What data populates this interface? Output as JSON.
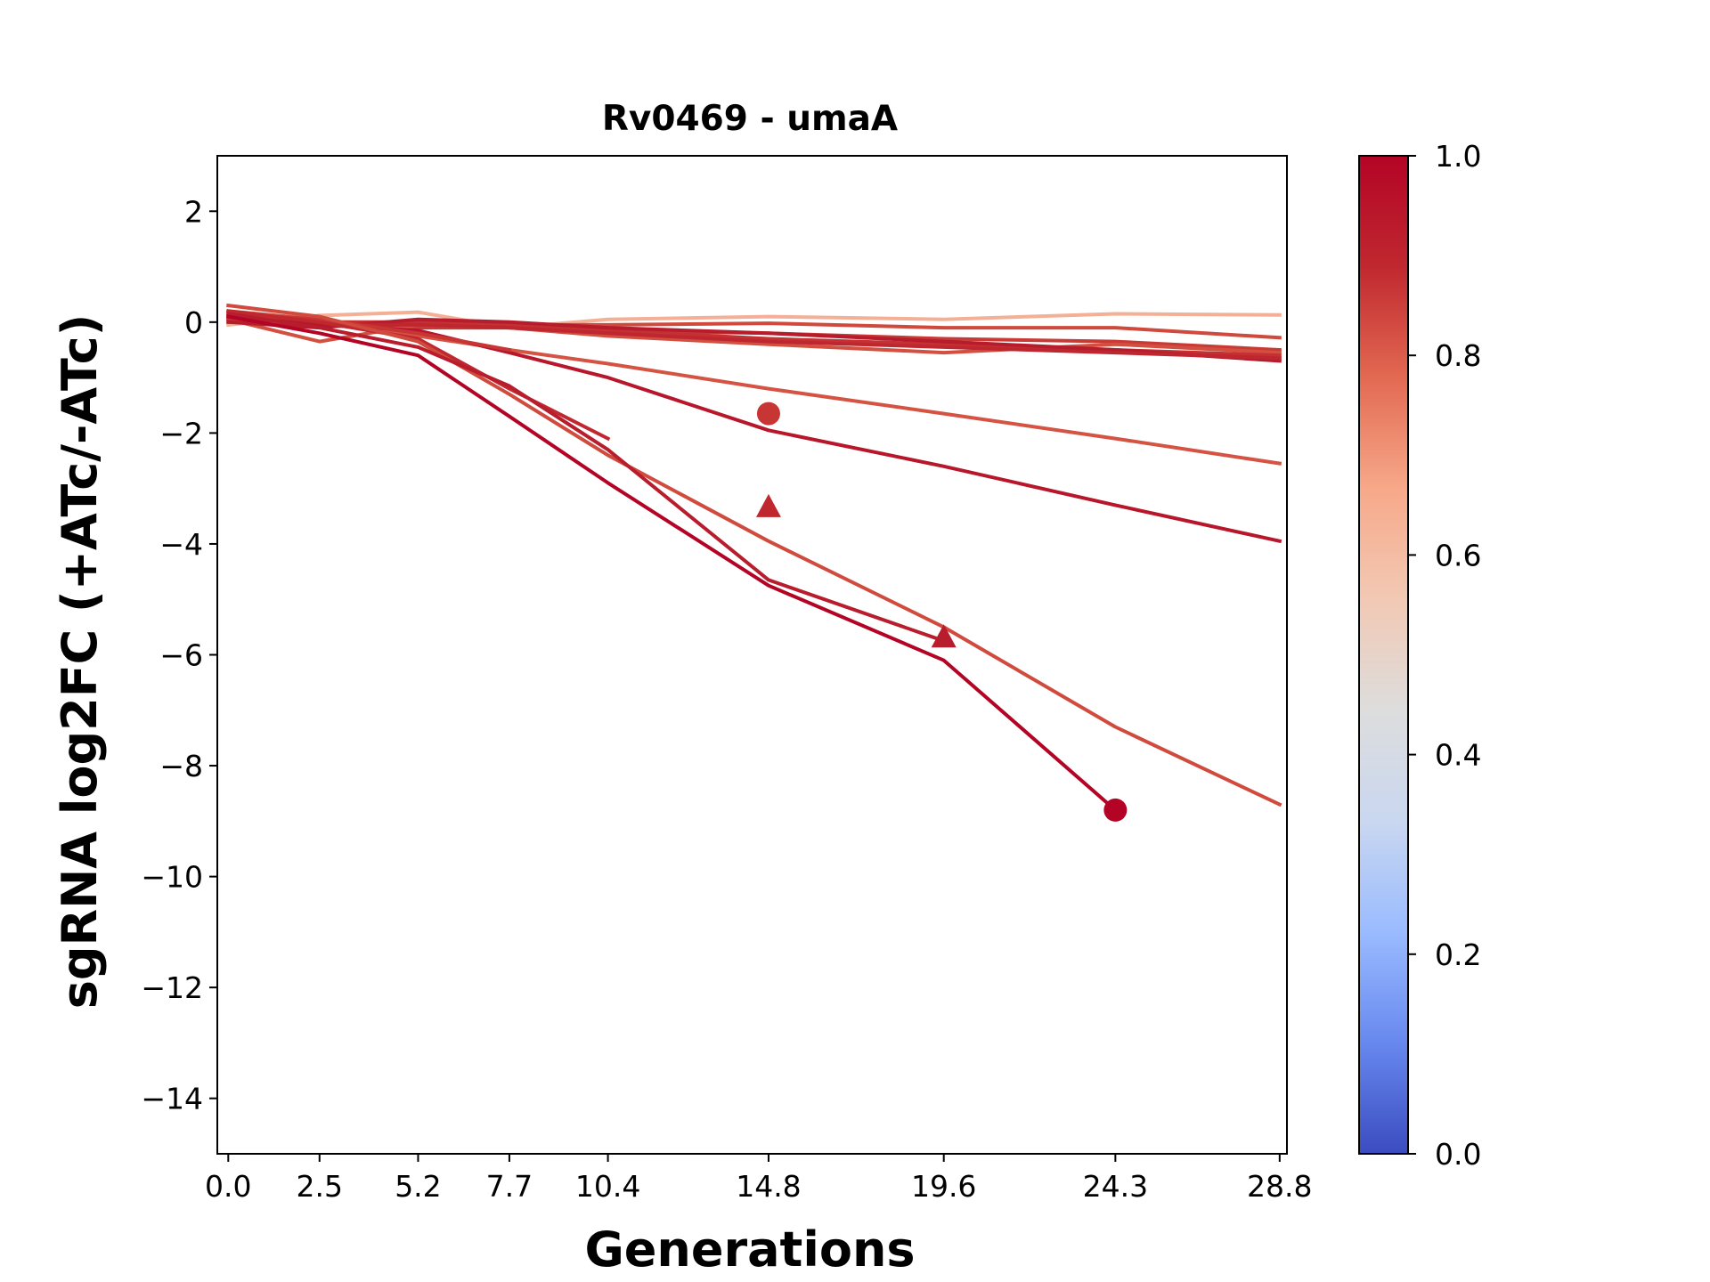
{
  "chart_data": {
    "type": "line",
    "title": "Rv0469 - umaA",
    "xlabel": "Generations",
    "ylabel": "sgRNA log2FC (+ATc/-ATc)",
    "xlim": [
      -0.3,
      29.0
    ],
    "ylim": [
      -15,
      3
    ],
    "x_ticks": [
      0.0,
      2.5,
      5.2,
      7.7,
      10.4,
      14.8,
      19.6,
      24.3,
      28.8
    ],
    "x_tick_labels": [
      "0.0",
      "2.5",
      "5.2",
      "7.7",
      "10.4",
      "14.8",
      "19.6",
      "24.3",
      "28.8"
    ],
    "y_ticks": [
      2,
      0,
      -2,
      -4,
      -6,
      -8,
      -10,
      -12,
      -14
    ],
    "y_tick_labels": [
      "2",
      "0",
      "−2",
      "−4",
      "−6",
      "−8",
      "−10",
      "−12",
      "−14"
    ],
    "grid": false,
    "colorbar": {
      "range": [
        0.0,
        1.0
      ],
      "ticks": [
        0.0,
        0.2,
        0.4,
        0.6,
        0.8,
        1.0
      ],
      "tick_labels": [
        "0.0",
        "0.2",
        "0.4",
        "0.6",
        "0.8",
        "1.0"
      ],
      "colors": [
        "#3b4cc0",
        "#6788ee",
        "#9abbff",
        "#c9d7f0",
        "#dddddd",
        "#f2c9b4",
        "#f7a889",
        "#e26952",
        "#c0282f",
        "#b40426"
      ]
    },
    "series": [
      {
        "color": "#f4b096",
        "x": [
          0.0,
          2.5,
          5.2,
          7.7,
          10.4,
          14.8,
          19.6,
          24.3,
          28.8
        ],
        "y": [
          -0.05,
          0.12,
          0.18,
          -0.1,
          0.05,
          0.1,
          0.05,
          0.15,
          0.13
        ]
      },
      {
        "color": "#cf4a3c",
        "x": [
          0.0,
          2.5,
          5.2,
          7.7,
          10.4,
          14.8,
          19.6,
          24.3,
          28.8
        ],
        "y": [
          0.0,
          -0.05,
          0.0,
          -0.05,
          -0.05,
          -0.02,
          -0.1,
          -0.1,
          -0.28
        ]
      },
      {
        "color": "#c83a35",
        "x": [
          0.0,
          2.5,
          5.2,
          7.7,
          10.4,
          14.8,
          19.6,
          24.3,
          28.8
        ],
        "y": [
          0.1,
          0.0,
          -0.1,
          -0.1,
          -0.15,
          -0.2,
          -0.3,
          -0.35,
          -0.5
        ]
      },
      {
        "color": "#d35040",
        "x": [
          0.0,
          2.5,
          5.2,
          7.7,
          10.4,
          14.8,
          19.6,
          24.3,
          28.8
        ],
        "y": [
          0.05,
          -0.35,
          -0.05,
          -0.1,
          -0.25,
          -0.4,
          -0.55,
          -0.4,
          -0.55
        ]
      },
      {
        "color": "#c53032",
        "x": [
          0.0,
          2.5,
          5.2,
          7.7,
          10.4,
          14.8,
          19.6,
          24.3,
          28.8
        ],
        "y": [
          0.05,
          0.0,
          0.0,
          -0.05,
          -0.15,
          -0.3,
          -0.4,
          -0.5,
          -0.6
        ]
      },
      {
        "color": "#b71c2c",
        "x": [
          0.0,
          2.5,
          5.2,
          7.7,
          10.4,
          14.8,
          19.6,
          24.3,
          28.8
        ],
        "y": [
          0.0,
          -0.1,
          0.05,
          0.0,
          -0.1,
          -0.2,
          -0.35,
          -0.5,
          -0.7
        ]
      },
      {
        "color": "#be2730",
        "x": [
          0.0,
          2.5,
          5.2,
          7.7,
          10.4,
          14.8,
          19.6,
          24.3,
          28.8
        ],
        "y": [
          0.1,
          -0.05,
          -0.05,
          -0.1,
          -0.2,
          -0.35,
          -0.45,
          -0.55,
          -0.65
        ]
      },
      {
        "color": "#d55342",
        "x": [
          0.0,
          2.5,
          5.2,
          7.7,
          10.4,
          14.8,
          19.6,
          24.3,
          28.8
        ],
        "y": [
          0.2,
          0.05,
          -0.25,
          -0.5,
          -0.75,
          -1.2,
          -1.65,
          -2.1,
          -2.55
        ]
      },
      {
        "color": "#b8172b",
        "x": [
          0.0,
          2.5,
          5.2,
          7.7,
          10.4,
          14.8,
          19.6,
          24.3,
          28.8
        ],
        "y": [
          0.1,
          -0.05,
          -0.15,
          -0.55,
          -1.0,
          -1.95,
          -2.6,
          -3.3,
          -3.95
        ]
      },
      {
        "color": "#c83535",
        "x": [
          0.0,
          2.5,
          5.2,
          7.7
        ],
        "y": [
          0.15,
          0.05,
          -0.2,
          -0.5
        ]
      },
      {
        "color": "#c0282f",
        "x": [
          0.0,
          2.5,
          5.2,
          7.7,
          10.4
        ],
        "y": [
          0.2,
          0.0,
          -0.3,
          -1.2,
          -2.1
        ]
      },
      {
        "color": "#d04b3d",
        "x": [
          0.0,
          2.5,
          5.2,
          7.7,
          10.4,
          14.8,
          19.6,
          24.3,
          28.8
        ],
        "y": [
          0.3,
          0.1,
          -0.35,
          -1.3,
          -2.4,
          -3.95,
          -5.5,
          -7.3,
          -8.7
        ]
      },
      {
        "color": "#b81d2d",
        "x": [
          0.0,
          2.5,
          5.2,
          7.7,
          10.4,
          14.8,
          19.6
        ],
        "y": [
          0.15,
          -0.1,
          -0.45,
          -1.15,
          -2.3,
          -4.65,
          -5.75
        ]
      },
      {
        "color": "#b40426",
        "x": [
          0.0,
          2.5,
          5.2,
          7.7,
          10.4,
          14.8,
          19.6,
          24.3
        ],
        "y": [
          0.1,
          -0.2,
          -0.6,
          -1.7,
          -2.9,
          -4.75,
          -6.1,
          -8.8
        ]
      }
    ],
    "markers": [
      {
        "shape": "circle",
        "color": "#c83535",
        "x": 14.8,
        "y": -1.65
      },
      {
        "shape": "triangle",
        "color": "#c0282f",
        "x": 14.8,
        "y": -3.35
      },
      {
        "shape": "triangle",
        "color": "#b81d2d",
        "x": 19.6,
        "y": -5.7
      },
      {
        "shape": "circle",
        "color": "#b40426",
        "x": 24.3,
        "y": -8.8
      }
    ]
  }
}
